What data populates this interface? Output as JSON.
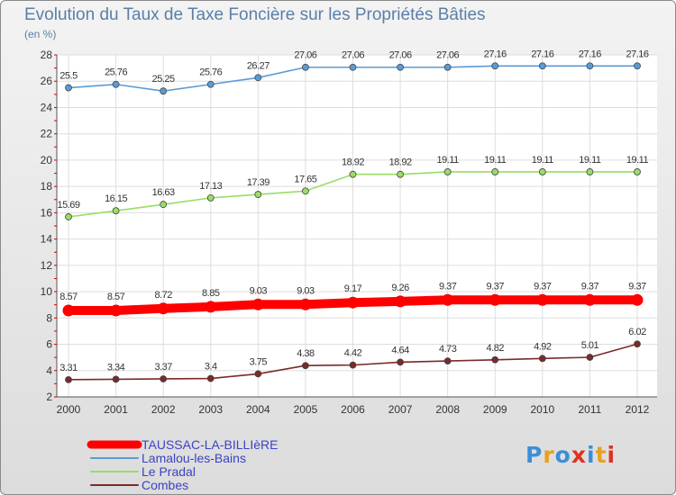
{
  "title": "Evolution du Taux de Taxe Foncière sur les Propriétés Bâties",
  "unit_label": "(en %)",
  "logo": {
    "letters": [
      "P",
      "r",
      "o",
      "x",
      "i",
      "t",
      "i"
    ],
    "colors": [
      "#3a8fd6",
      "#e8a020",
      "#3a8fd6",
      "#e03020",
      "#3a8fd6",
      "#e8a020",
      "#e03020"
    ]
  },
  "chart_data": {
    "type": "line",
    "title": "Evolution du Taux de Taxe Foncière sur les Propriétés Bâties",
    "ylabel": "(en %)",
    "xlabel": "",
    "x": [
      "2000",
      "2001",
      "2002",
      "2003",
      "2004",
      "2005",
      "2006",
      "2007",
      "2008",
      "2009",
      "2010",
      "2011",
      "2012"
    ],
    "ylim": [
      2,
      28
    ],
    "yticks": [
      2,
      4,
      6,
      8,
      10,
      12,
      14,
      16,
      18,
      20,
      22,
      24,
      26,
      28
    ],
    "grid": true,
    "legend_position": "bottom-left",
    "series": [
      {
        "name": "TAUSSAC-LA-BILLIèRE",
        "color": "#ff0000",
        "emphasis": true,
        "values": [
          8.57,
          8.57,
          8.72,
          8.85,
          9.03,
          9.03,
          9.17,
          9.26,
          9.37,
          9.37,
          9.37,
          9.37,
          9.37
        ],
        "labels": [
          "8.57",
          "8.57",
          "8.72",
          "8.85",
          "9.03",
          "9.03",
          "9.17",
          "9.26",
          "9.37",
          "9.37",
          "9.37",
          "9.37",
          "9.37"
        ]
      },
      {
        "name": "Lamalou-les-Bains",
        "color": "#5b9bd5",
        "values": [
          25.5,
          25.76,
          25.25,
          25.76,
          26.27,
          27.06,
          27.06,
          27.06,
          27.06,
          27.16,
          27.16,
          27.16,
          27.16
        ],
        "labels": [
          "25.5",
          "25.76",
          "25.25",
          "25.76",
          "26.27",
          "27.06",
          "27.06",
          "27.06",
          "27.06",
          "27.16",
          "27.16",
          "27.16",
          "27.16"
        ]
      },
      {
        "name": "Le Pradal",
        "color": "#99dd66",
        "values": [
          15.69,
          16.15,
          16.63,
          17.13,
          17.39,
          17.65,
          18.92,
          18.92,
          19.11,
          19.11,
          19.11,
          19.11,
          19.11
        ],
        "labels": [
          "15.69",
          "16.15",
          "16.63",
          "17.13",
          "17.39",
          "17.65",
          "18.92",
          "18.92",
          "19.11",
          "19.11",
          "19.11",
          "19.11",
          "19.11"
        ]
      },
      {
        "name": "Combes",
        "color": "#7a2a2a",
        "values": [
          3.31,
          3.34,
          3.37,
          3.4,
          3.75,
          4.38,
          4.42,
          4.64,
          4.73,
          4.82,
          4.92,
          5.01,
          6.02
        ],
        "labels": [
          "3.31",
          "3.34",
          "3.37",
          "3.4",
          "3.75",
          "4.38",
          "4.42",
          "4.64",
          "4.73",
          "4.82",
          "4.92",
          "5.01",
          "6.02"
        ]
      }
    ]
  }
}
